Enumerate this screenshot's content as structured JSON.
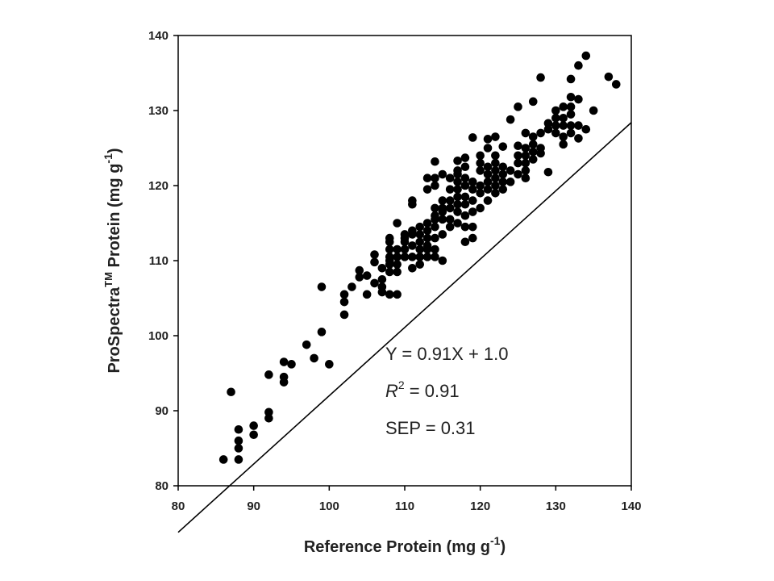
{
  "chart_data": {
    "type": "scatter",
    "xlabel": {
      "main": "Reference Protein (mg g",
      "sup": "-1",
      "end": ")"
    },
    "ylabel": {
      "pre": "ProSpectra",
      "sup1": "TM",
      "mid": " Protein (mg g",
      "sup2": "-1",
      "end": ")"
    },
    "xlim": [
      80,
      140
    ],
    "ylim": [
      80,
      140
    ],
    "xticks": [
      80,
      90,
      100,
      110,
      120,
      130,
      140
    ],
    "yticks": [
      80,
      90,
      100,
      110,
      120,
      130,
      140
    ],
    "grid": false,
    "regression": {
      "slope": 0.91,
      "intercept": 1.0
    },
    "annotations": {
      "equation": "Y = 0.91X + 1.0",
      "r2_label": "R",
      "r2_sup": "2",
      "r2_value": " = 0.91",
      "sep": "SEP = 0.31"
    },
    "points": [
      [
        86,
        83.5
      ],
      [
        87,
        92.5
      ],
      [
        88,
        83.5
      ],
      [
        88,
        85
      ],
      [
        88,
        86
      ],
      [
        88,
        87.5
      ],
      [
        90,
        86.8
      ],
      [
        90,
        88
      ],
      [
        92,
        89
      ],
      [
        92,
        89.8
      ],
      [
        92,
        94.8
      ],
      [
        94,
        93.8
      ],
      [
        94,
        94.5
      ],
      [
        94,
        96.5
      ],
      [
        95,
        96.2
      ],
      [
        97,
        98.8
      ],
      [
        98,
        97
      ],
      [
        99,
        100.5
      ],
      [
        99,
        106.5
      ],
      [
        100,
        96.2
      ],
      [
        102,
        102.8
      ],
      [
        102,
        104.5
      ],
      [
        102,
        105.5
      ],
      [
        103,
        106.5
      ],
      [
        104,
        107.8
      ],
      [
        104,
        108.7
      ],
      [
        105,
        105.5
      ],
      [
        105,
        108
      ],
      [
        106,
        107
      ],
      [
        106,
        109.8
      ],
      [
        106,
        110.8
      ],
      [
        107,
        105.8
      ],
      [
        107,
        106.5
      ],
      [
        107,
        107.5
      ],
      [
        107,
        109
      ],
      [
        108,
        105.5
      ],
      [
        108,
        108.5
      ],
      [
        108,
        109.5
      ],
      [
        108,
        110
      ],
      [
        108,
        110.5
      ],
      [
        108,
        111.5
      ],
      [
        108,
        112.5
      ],
      [
        108,
        113
      ],
      [
        109,
        109.5
      ],
      [
        109,
        110.5
      ],
      [
        109,
        111.5
      ],
      [
        109,
        105.5
      ],
      [
        109,
        108.5
      ],
      [
        109,
        115
      ],
      [
        110,
        110.5
      ],
      [
        110,
        111.5
      ],
      [
        110,
        112.5
      ],
      [
        110,
        113.5
      ],
      [
        110,
        113
      ],
      [
        111,
        109
      ],
      [
        111,
        110.5
      ],
      [
        111,
        112
      ],
      [
        111,
        113.5
      ],
      [
        111,
        114
      ],
      [
        111,
        117.5
      ],
      [
        111,
        118
      ],
      [
        112,
        109.5
      ],
      [
        112,
        110.5
      ],
      [
        112,
        111.5
      ],
      [
        112,
        112.5
      ],
      [
        112,
        113.5
      ],
      [
        112,
        114.5
      ],
      [
        113,
        110.5
      ],
      [
        113,
        111.5
      ],
      [
        113,
        112
      ],
      [
        113,
        113
      ],
      [
        113,
        114
      ],
      [
        113,
        115
      ],
      [
        113,
        119.5
      ],
      [
        113,
        121
      ],
      [
        114,
        110.5
      ],
      [
        114,
        111.5
      ],
      [
        114,
        113
      ],
      [
        114,
        114.5
      ],
      [
        114,
        115.5
      ],
      [
        114,
        116
      ],
      [
        114,
        117
      ],
      [
        114,
        120
      ],
      [
        114,
        121
      ],
      [
        114,
        123.2
      ],
      [
        115,
        110
      ],
      [
        115,
        113.5
      ],
      [
        115,
        115.5
      ],
      [
        115,
        116.5
      ],
      [
        115,
        117
      ],
      [
        115,
        118
      ],
      [
        115,
        121.5
      ],
      [
        116,
        114.5
      ],
      [
        116,
        115.5
      ],
      [
        116,
        117
      ],
      [
        116,
        118
      ],
      [
        116,
        119.5
      ],
      [
        116,
        121
      ],
      [
        117,
        115
      ],
      [
        117,
        116.5
      ],
      [
        117,
        117.5
      ],
      [
        117,
        118.5
      ],
      [
        117,
        119.5
      ],
      [
        117,
        120.5
      ],
      [
        117,
        121.5
      ],
      [
        117,
        122
      ],
      [
        117,
        123.3
      ],
      [
        118,
        112.5
      ],
      [
        118,
        114.5
      ],
      [
        118,
        116
      ],
      [
        118,
        117.5
      ],
      [
        118,
        118.5
      ],
      [
        118,
        120
      ],
      [
        118,
        121
      ],
      [
        118,
        122.5
      ],
      [
        118,
        123.7
      ],
      [
        119,
        113
      ],
      [
        119,
        114.5
      ],
      [
        119,
        116.5
      ],
      [
        119,
        118
      ],
      [
        119,
        119.5
      ],
      [
        119,
        120.5
      ],
      [
        119,
        126.4
      ],
      [
        120,
        117
      ],
      [
        120,
        119
      ],
      [
        120,
        120
      ],
      [
        120,
        122
      ],
      [
        120,
        123
      ],
      [
        120,
        124
      ],
      [
        121,
        118
      ],
      [
        121,
        119.5
      ],
      [
        121,
        120.5
      ],
      [
        121,
        121.5
      ],
      [
        121,
        122.5
      ],
      [
        121,
        125
      ],
      [
        121,
        126.2
      ],
      [
        122,
        119
      ],
      [
        122,
        120
      ],
      [
        122,
        121
      ],
      [
        122,
        122
      ],
      [
        122,
        123
      ],
      [
        122,
        124
      ],
      [
        122,
        126.5
      ],
      [
        123,
        119.5
      ],
      [
        123,
        120.5
      ],
      [
        123,
        121.5
      ],
      [
        123,
        122.5
      ],
      [
        123,
        125.2
      ],
      [
        124,
        120.5
      ],
      [
        124,
        122
      ],
      [
        124,
        128.8
      ],
      [
        125,
        121.5
      ],
      [
        125,
        123
      ],
      [
        125,
        124
      ],
      [
        125,
        125.3
      ],
      [
        125,
        130.5
      ],
      [
        126,
        121
      ],
      [
        126,
        122
      ],
      [
        126,
        123
      ],
      [
        126,
        124
      ],
      [
        126,
        125
      ],
      [
        126,
        127
      ],
      [
        127,
        123.5
      ],
      [
        127,
        124.5
      ],
      [
        127,
        125.5
      ],
      [
        127,
        126.5
      ],
      [
        127,
        131.2
      ],
      [
        128,
        124.3
      ],
      [
        128,
        125
      ],
      [
        128,
        127
      ],
      [
        128,
        134.4
      ],
      [
        129,
        121.8
      ],
      [
        129,
        127.5
      ],
      [
        129,
        128.3
      ],
      [
        130,
        127
      ],
      [
        130,
        128
      ],
      [
        130,
        129
      ],
      [
        130,
        130
      ],
      [
        131,
        125.5
      ],
      [
        131,
        126.5
      ],
      [
        131,
        128
      ],
      [
        131,
        129
      ],
      [
        131,
        130.5
      ],
      [
        132,
        127
      ],
      [
        132,
        128
      ],
      [
        132,
        129.5
      ],
      [
        132,
        130.5
      ],
      [
        132,
        131.8
      ],
      [
        132,
        134.2
      ],
      [
        133,
        126.3
      ],
      [
        133,
        128
      ],
      [
        133,
        131.5
      ],
      [
        133,
        136
      ],
      [
        134,
        127.5
      ],
      [
        134,
        137.3
      ],
      [
        135,
        130
      ],
      [
        137,
        134.5
      ],
      [
        138,
        133.5
      ]
    ]
  }
}
